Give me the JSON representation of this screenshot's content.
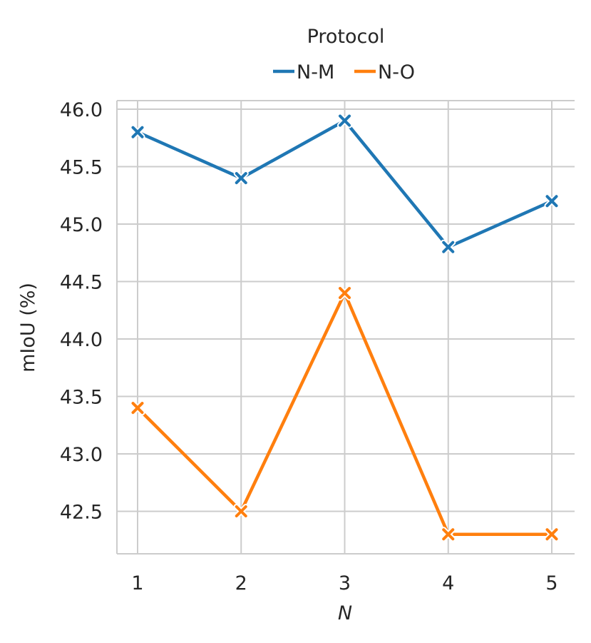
{
  "chart_data": {
    "type": "line",
    "x": [
      1,
      2,
      3,
      4,
      5
    ],
    "xlabel": "N",
    "ylabel": "mIoU (%)",
    "ylim": [
      42.1,
      46.1
    ],
    "yticks": [
      42.5,
      43.0,
      43.5,
      44.0,
      44.5,
      45.0,
      45.5,
      46.0
    ],
    "xticks": [
      1,
      2,
      3,
      4,
      5
    ],
    "grid": true,
    "marker": "x",
    "legend": {
      "title": "Protocol",
      "placement": "top-center"
    },
    "series": [
      {
        "name": "N-M",
        "color": "#1f77b4",
        "values": [
          45.8,
          45.4,
          45.9,
          44.8,
          45.2
        ]
      },
      {
        "name": "N-O",
        "color": "#ff7f0e",
        "values": [
          43.4,
          42.5,
          44.4,
          42.3,
          42.3
        ]
      }
    ]
  }
}
